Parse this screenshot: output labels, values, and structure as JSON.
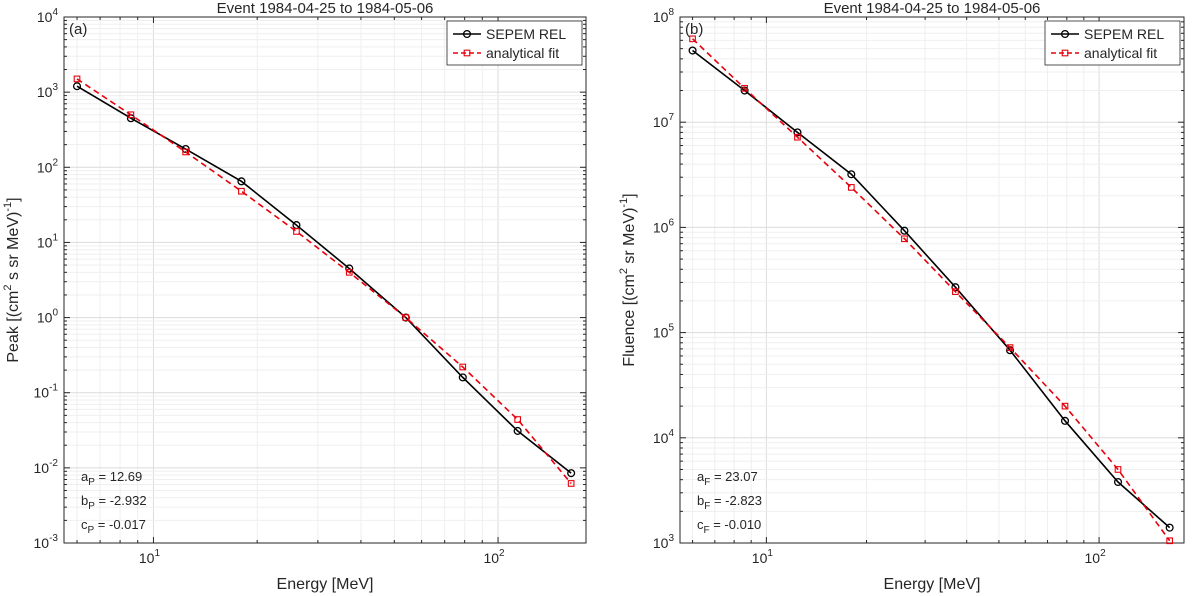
{
  "chart_data": [
    {
      "type": "line",
      "title": "Event 1984-04-25 to 1984-05-06",
      "panel_label": "(a)",
      "xlabel": "Energy [MeV]",
      "ylabel": "Peak [(cm² s sr MeV)⁻¹]",
      "ylabel_parts": {
        "main": "Peak [(cm",
        "sup1": "2",
        "mid": " s sr MeV)",
        "sup2": "-1",
        "end": "]"
      },
      "x_scale": "log",
      "y_scale": "log",
      "xlim": [
        5.5,
        180
      ],
      "ylim": [
        0.001,
        10000
      ],
      "xticks": [
        10,
        100
      ],
      "yticks": [
        0.001,
        0.01,
        0.1,
        1,
        10,
        100,
        1000,
        10000
      ],
      "xtick_labels": [
        {
          "base": "10",
          "exp": "1"
        },
        {
          "base": "10",
          "exp": "2"
        }
      ],
      "ytick_labels": [
        {
          "base": "10",
          "exp": "-3"
        },
        {
          "base": "10",
          "exp": "-2"
        },
        {
          "base": "10",
          "exp": "-1"
        },
        {
          "base": "10",
          "exp": "0"
        },
        {
          "base": "10",
          "exp": "1"
        },
        {
          "base": "10",
          "exp": "2"
        },
        {
          "base": "10",
          "exp": "3"
        },
        {
          "base": "10",
          "exp": "4"
        }
      ],
      "grid": true,
      "minor_grid": true,
      "legend_position": "top-right",
      "series": [
        {
          "name": "SEPEM REL",
          "color": "#000000",
          "style": "solid",
          "marker": "circle",
          "x": [
            6.0,
            8.6,
            12.4,
            18.0,
            26.0,
            37.0,
            54.0,
            79.0,
            114.0,
            163.0
          ],
          "y": [
            1200,
            450,
            175,
            65,
            17,
            4.5,
            1.0,
            0.16,
            0.031,
            0.0085
          ]
        },
        {
          "name": "analytical fit",
          "color": "#e8000b",
          "style": "dashed",
          "marker": "square",
          "x": [
            6.0,
            8.6,
            12.4,
            18.0,
            26.0,
            37.0,
            54.0,
            79.0,
            114.0,
            163.0
          ],
          "y": [
            1500,
            500,
            160,
            48,
            14,
            4.0,
            1.0,
            0.22,
            0.044,
            0.0062
          ]
        }
      ],
      "annotations": [
        {
          "base": "a",
          "sub": "P",
          "rest": " = 12.69"
        },
        {
          "base": "b",
          "sub": "P",
          "rest": " = -2.932"
        },
        {
          "base": "c",
          "sub": "P",
          "rest": " = -0.017"
        }
      ]
    },
    {
      "type": "line",
      "title": "Event 1984-04-25 to 1984-05-06",
      "panel_label": "(b)",
      "xlabel": "Energy [MeV]",
      "ylabel": "Fluence [(cm² sr MeV)⁻¹]",
      "ylabel_parts": {
        "main": "Fluence [(cm",
        "sup1": "2",
        "mid": " sr MeV)",
        "sup2": "-1",
        "end": "]"
      },
      "x_scale": "log",
      "y_scale": "log",
      "xlim": [
        5.5,
        180
      ],
      "ylim": [
        1000,
        100000000
      ],
      "xticks": [
        10,
        100
      ],
      "yticks": [
        1000,
        10000,
        100000,
        1000000,
        10000000,
        100000000
      ],
      "xtick_labels": [
        {
          "base": "10",
          "exp": "1"
        },
        {
          "base": "10",
          "exp": "2"
        }
      ],
      "ytick_labels": [
        {
          "base": "10",
          "exp": "3"
        },
        {
          "base": "10",
          "exp": "4"
        },
        {
          "base": "10",
          "exp": "5"
        },
        {
          "base": "10",
          "exp": "6"
        },
        {
          "base": "10",
          "exp": "7"
        },
        {
          "base": "10",
          "exp": "8"
        }
      ],
      "grid": true,
      "minor_grid": true,
      "legend_position": "top-right",
      "series": [
        {
          "name": "SEPEM REL",
          "color": "#000000",
          "style": "solid",
          "marker": "circle",
          "x": [
            6.0,
            8.6,
            12.4,
            18.0,
            26.0,
            37.0,
            54.0,
            79.0,
            114.0,
            163.0
          ],
          "y": [
            48000000,
            20000000,
            8000000,
            3200000,
            930000,
            270000,
            68000,
            14500,
            3800,
            1400
          ]
        },
        {
          "name": "analytical fit",
          "color": "#e8000b",
          "style": "dashed",
          "marker": "square",
          "x": [
            6.0,
            8.6,
            12.4,
            18.0,
            26.0,
            37.0,
            54.0,
            79.0,
            114.0,
            163.0
          ],
          "y": [
            62000000,
            21000000,
            7200000,
            2400000,
            780000,
            245000,
            72000,
            20000,
            5000,
            1050
          ]
        }
      ],
      "annotations": [
        {
          "base": "a",
          "sub": "F",
          "rest": " = 23.07"
        },
        {
          "base": "b",
          "sub": "F",
          "rest": " = -2.823"
        },
        {
          "base": "c",
          "sub": "F",
          "rest": " = -0.010"
        }
      ]
    }
  ]
}
